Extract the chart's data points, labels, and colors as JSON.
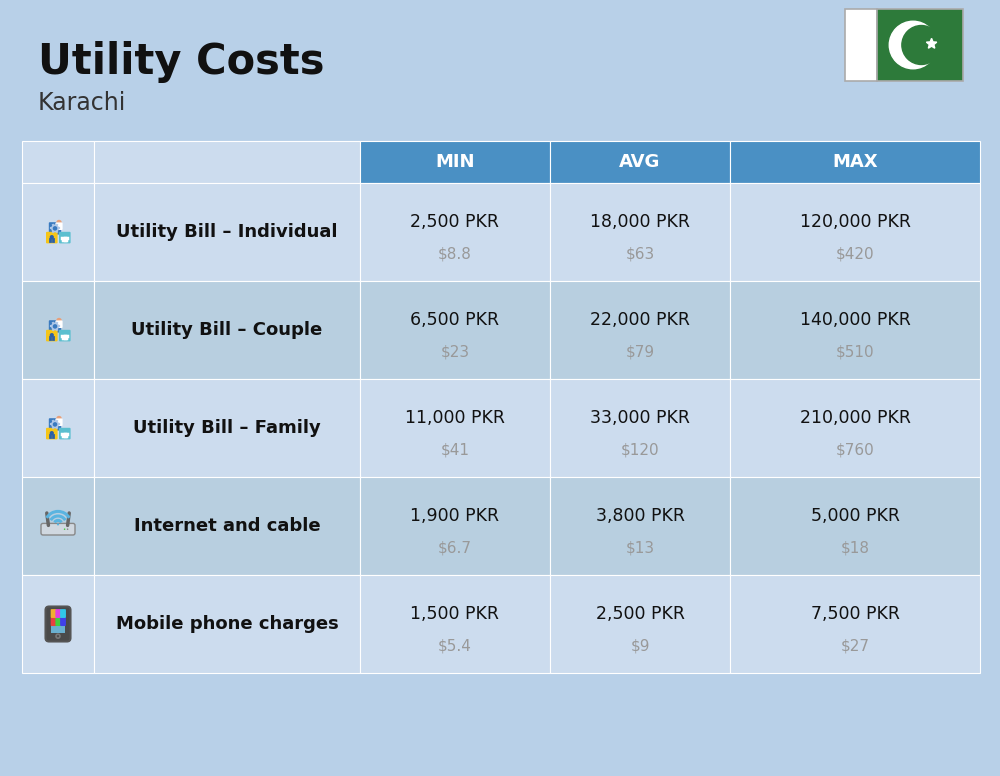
{
  "title": "Utility Costs",
  "subtitle": "Karachi",
  "background_color": "#b8d0e8",
  "header_bg_color": "#4a90c4",
  "row_bg_color_odd": "#ccdcee",
  "row_bg_color_even": "#b8cfe0",
  "header_text_color": "#ffffff",
  "title_color": "#111111",
  "subtitle_color": "#333333",
  "main_text_color": "#111111",
  "usd_text_color": "#999999",
  "columns": [
    "MIN",
    "AVG",
    "MAX"
  ],
  "rows": [
    {
      "label": "Utility Bill – Individual",
      "min_pkr": "2,500 PKR",
      "min_usd": "$8.8",
      "avg_pkr": "18,000 PKR",
      "avg_usd": "$63",
      "max_pkr": "120,000 PKR",
      "max_usd": "$420",
      "icon": "utility"
    },
    {
      "label": "Utility Bill – Couple",
      "min_pkr": "6,500 PKR",
      "min_usd": "$23",
      "avg_pkr": "22,000 PKR",
      "avg_usd": "$79",
      "max_pkr": "140,000 PKR",
      "max_usd": "$510",
      "icon": "utility"
    },
    {
      "label": "Utility Bill – Family",
      "min_pkr": "11,000 PKR",
      "min_usd": "$41",
      "avg_pkr": "33,000 PKR",
      "avg_usd": "$120",
      "max_pkr": "210,000 PKR",
      "max_usd": "$760",
      "icon": "utility"
    },
    {
      "label": "Internet and cable",
      "min_pkr": "1,900 PKR",
      "min_usd": "$6.7",
      "avg_pkr": "3,800 PKR",
      "avg_usd": "$13",
      "max_pkr": "5,000 PKR",
      "max_usd": "$18",
      "icon": "internet"
    },
    {
      "label": "Mobile phone charges",
      "min_pkr": "1,500 PKR",
      "min_usd": "$5.4",
      "avg_pkr": "2,500 PKR",
      "avg_usd": "$9",
      "max_pkr": "7,500 PKR",
      "max_usd": "$27",
      "icon": "mobile"
    }
  ]
}
